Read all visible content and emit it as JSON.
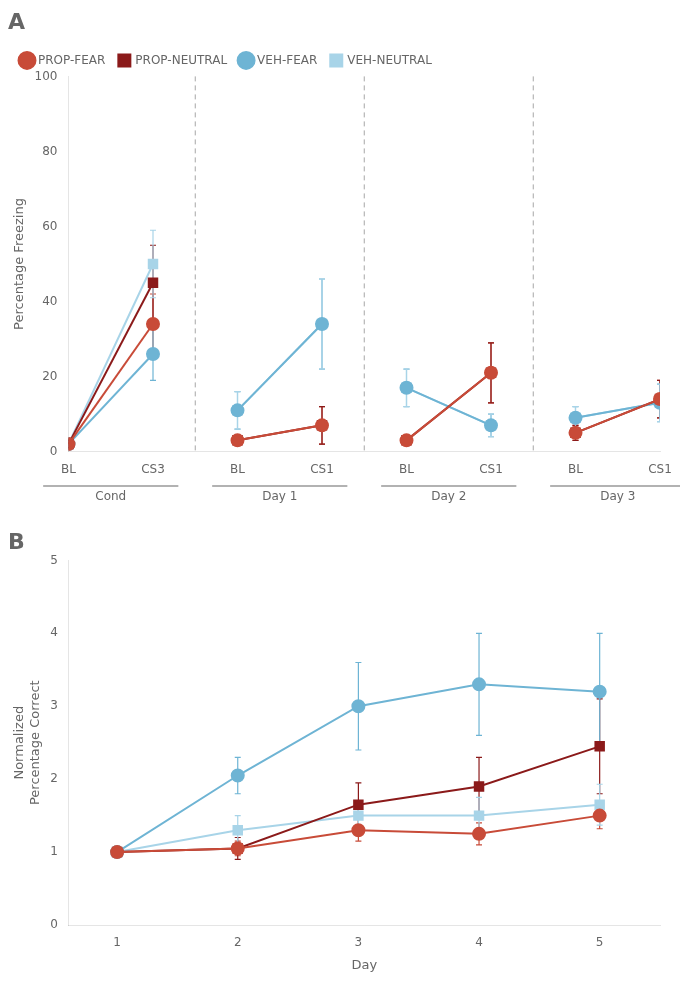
{
  "chart_data": [
    {
      "type": "line",
      "title": "A",
      "categories": [
        "BL",
        "CS3",
        "BL",
        "CS1",
        "BL",
        "CS1",
        "BL",
        "CS1"
      ],
      "category_groups": [
        "Cond",
        "Cond",
        "Day 1",
        "Day 1",
        "Day 2",
        "Day 2",
        "Day 3",
        "Day 3"
      ],
      "ylabel": "Percentage Freezing",
      "ylim": [
        0,
        100
      ],
      "yticks": [
        0,
        20,
        40,
        60,
        80,
        100
      ],
      "grid": false,
      "legend": "upper left",
      "series": [
        {
          "name": "PROP-FEAR",
          "color": "#C84B38",
          "marker": "circle",
          "values": [
            2,
            34,
            3,
            7,
            3,
            21,
            5,
            14
          ],
          "errors": [
            0.5,
            8,
            1,
            5,
            1,
            8,
            2,
            5
          ]
        },
        {
          "name": "PROP-NEUTRAL",
          "color": "#8B1A1A",
          "marker": "square",
          "values": [
            2,
            45,
            3,
            7,
            3,
            21,
            5,
            14
          ],
          "errors": [
            0.5,
            10,
            1,
            5,
            1,
            8,
            2,
            5
          ]
        },
        {
          "name": "VEH-FEAR",
          "color": "#6EB4D4",
          "marker": "circle",
          "values": [
            2,
            26,
            11,
            34,
            17,
            7,
            9,
            13
          ],
          "errors": [
            0.5,
            7,
            5,
            12,
            5,
            3,
            3,
            5
          ]
        },
        {
          "name": "VEH-NEUTRAL",
          "color": "#A8D4E8",
          "marker": "square",
          "values": [
            2,
            50,
            11,
            34,
            17,
            7,
            9,
            13
          ],
          "errors": [
            0.5,
            9,
            5,
            12,
            5,
            3,
            3,
            5
          ]
        }
      ]
    },
    {
      "type": "line",
      "title": "B",
      "x": [
        1,
        2,
        3,
        4,
        5
      ],
      "xlabel": "Day",
      "xlim": [
        0.6,
        5.5
      ],
      "xticks": [
        1,
        2,
        3,
        4,
        5
      ],
      "ylabel": "Normalized\nPercentage Correct",
      "ylim": [
        0,
        5
      ],
      "yticks": [
        0,
        1,
        2,
        3,
        4,
        5
      ],
      "grid": false,
      "series": [
        {
          "name": "PROP-FEAR",
          "color": "#C84B38",
          "marker": "circle",
          "values": [
            1.0,
            1.05,
            1.3,
            1.25,
            1.5
          ],
          "errors": [
            0.03,
            0.1,
            0.15,
            0.15,
            0.18
          ]
        },
        {
          "name": "PROP-NEUTRAL",
          "color": "#8B1A1A",
          "marker": "square",
          "values": [
            1.0,
            1.05,
            1.65,
            1.9,
            2.45
          ],
          "errors": [
            0.03,
            0.15,
            0.3,
            0.4,
            0.65
          ]
        },
        {
          "name": "VEH-FEAR",
          "color": "#6EB4D4",
          "marker": "circle",
          "values": [
            1.0,
            2.05,
            3.0,
            3.3,
            3.2
          ],
          "errors": [
            0.03,
            0.25,
            0.6,
            0.7,
            0.8
          ]
        },
        {
          "name": "VEH-NEUTRAL",
          "color": "#A8D4E8",
          "marker": "square",
          "values": [
            1.0,
            1.3,
            1.5,
            1.5,
            1.65
          ],
          "errors": [
            0.03,
            0.2,
            0.2,
            0.25,
            0.28
          ]
        }
      ]
    }
  ]
}
